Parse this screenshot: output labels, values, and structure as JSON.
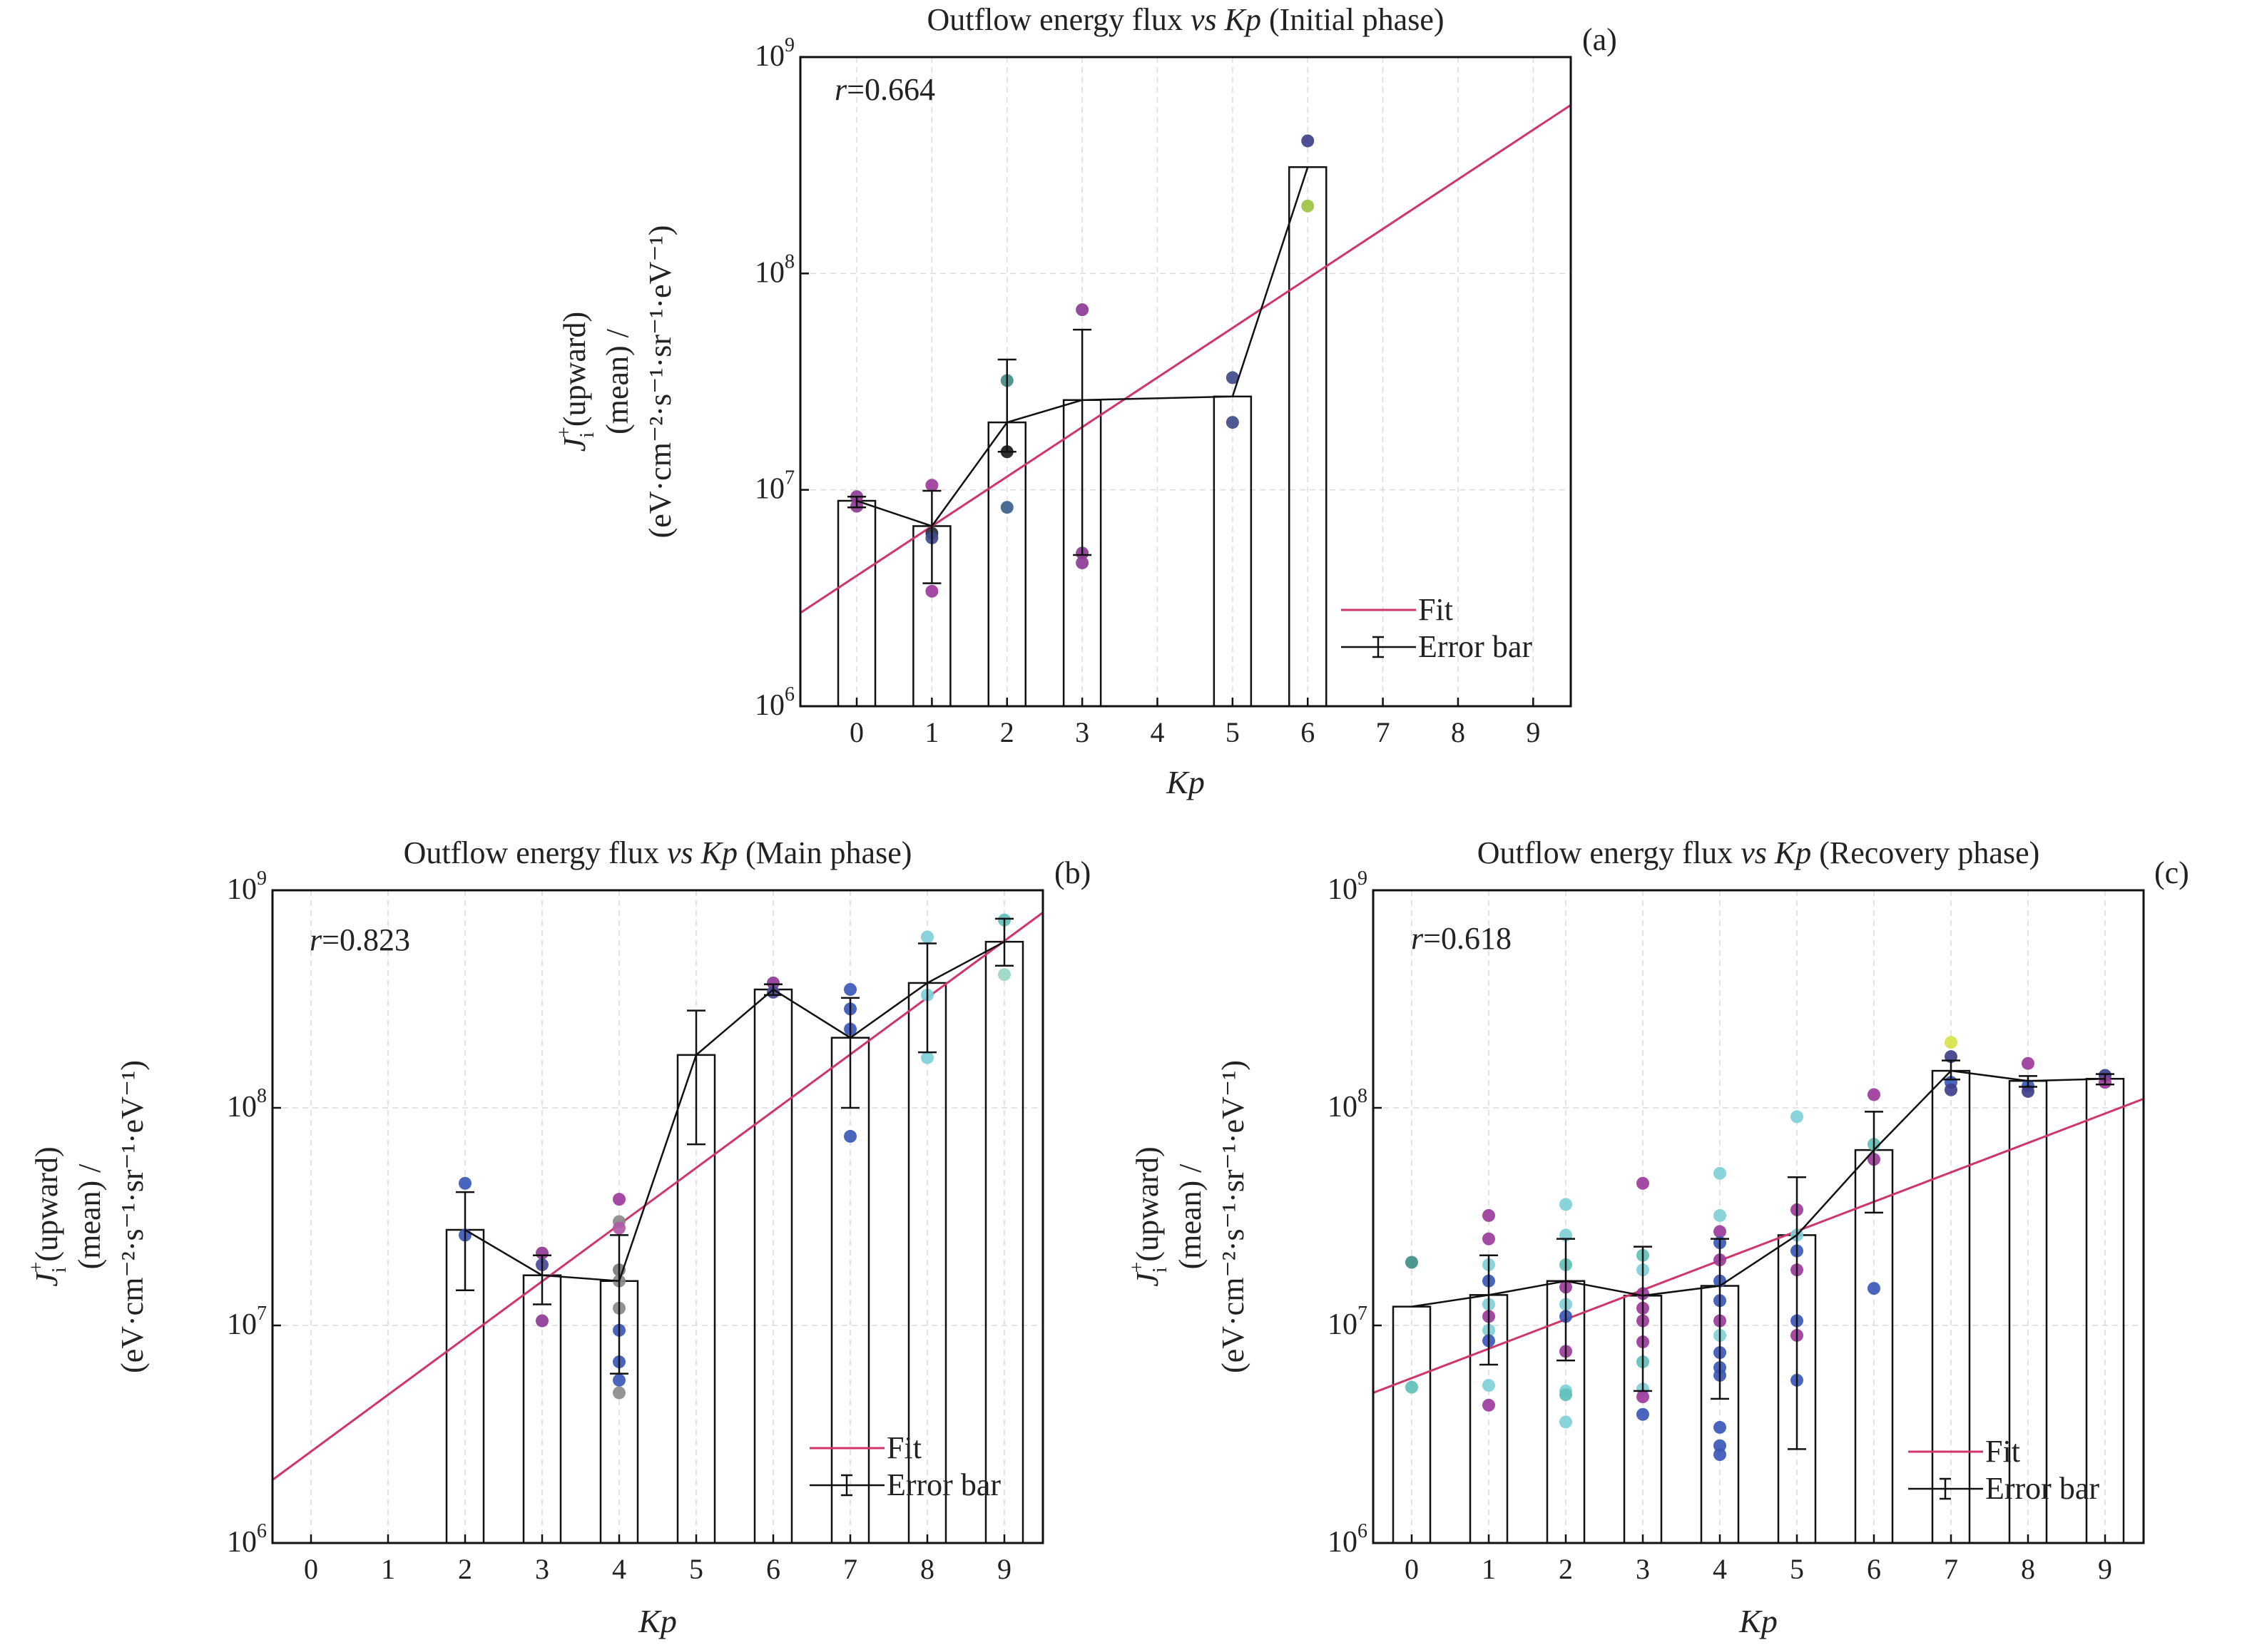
{
  "chart_data": [
    {
      "id": "a",
      "type": "bar",
      "title_parts": [
        "Outflow energy flux ",
        "vs Kp",
        " (Initial phase)"
      ],
      "panel_label": "(a)",
      "xlabel": "Kp",
      "ylabel_line1_sym": "J",
      "ylabel_line1_sub": "i",
      "ylabel_line1_sup": "+",
      "ylabel_line1_rest": "(upward)",
      "ylabel_line2": "(mean) /",
      "ylabel_line3": "(eV·cm⁻²·s⁻¹·sr⁻¹·eV⁻¹)",
      "yscale": "log",
      "ylim": [
        1000000,
        1000000000
      ],
      "xlim": [
        -0.75,
        9.5
      ],
      "xticks": [
        "0",
        "1",
        "2",
        "3",
        "4",
        "5",
        "6",
        "7",
        "8",
        "9"
      ],
      "yticks": [
        {
          "base": "10",
          "exp": "6"
        },
        {
          "base": "10",
          "exp": "7"
        },
        {
          "base": "10",
          "exp": "8"
        },
        {
          "base": "10",
          "exp": "9"
        }
      ],
      "r_label_sym": "r",
      "r_label_val": "=0.664",
      "bars": [
        {
          "kp": 0,
          "mean": 8900000
        },
        {
          "kp": 1,
          "mean": 6800000
        },
        {
          "kp": 2,
          "mean": 20500000
        },
        {
          "kp": 3,
          "mean": 26000000
        },
        {
          "kp": 5,
          "mean": 27000000
        },
        {
          "kp": 6,
          "mean": 310000000
        }
      ],
      "mean_line": [
        [
          0,
          8900000
        ],
        [
          1,
          6800000
        ],
        [
          2,
          20500000
        ],
        [
          3,
          26000000
        ],
        [
          5,
          27000000
        ],
        [
          6,
          310000000
        ]
      ],
      "error_bars": [
        {
          "kp": 0,
          "low": 8300000,
          "high": 9300000
        },
        {
          "kp": 1,
          "low": 3700000,
          "high": 9900000
        },
        {
          "kp": 2,
          "low": 15000000,
          "high": 40000000
        },
        {
          "kp": 3,
          "low": 5000000,
          "high": 55000000
        }
      ],
      "points": [
        {
          "kp": 0,
          "v": 9300000,
          "color": "#8e3b95"
        },
        {
          "kp": 0,
          "v": 8400000,
          "color": "#8e3b95"
        },
        {
          "kp": 1,
          "v": 10500000,
          "color": "#9c3b9c"
        },
        {
          "kp": 1,
          "v": 6300000,
          "color": "#2a2a3a"
        },
        {
          "kp": 1,
          "v": 6000000,
          "color": "#3f4a8a"
        },
        {
          "kp": 1,
          "v": 3400000,
          "color": "#9c3b9c"
        },
        {
          "kp": 2,
          "v": 32000000,
          "color": "#3f8d85"
        },
        {
          "kp": 2,
          "v": 15000000,
          "color": "#1a1a1a"
        },
        {
          "kp": 2,
          "v": 8300000,
          "color": "#3a5f8c"
        },
        {
          "kp": 3,
          "v": 68000000,
          "color": "#8e3b95"
        },
        {
          "kp": 3,
          "v": 5100000,
          "color": "#8e3b95"
        },
        {
          "kp": 3,
          "v": 4600000,
          "color": "#8e3b95"
        },
        {
          "kp": 5,
          "v": 33000000,
          "color": "#3f4a8a"
        },
        {
          "kp": 5,
          "v": 20500000,
          "color": "#3f4a8a"
        },
        {
          "kp": 6,
          "v": 410000000,
          "color": "#3f3f8a"
        },
        {
          "kp": 6,
          "v": 205000000,
          "color": "#9bc442"
        }
      ],
      "fit": {
        "x0": -0.75,
        "y0": 2700000,
        "x1": 9.5,
        "y1": 600000000,
        "color": "#d0356a"
      },
      "legend": {
        "fit": "Fit",
        "error": "Error bar",
        "position": "bottom-right"
      }
    },
    {
      "id": "b",
      "type": "bar",
      "title_parts": [
        "Outflow energy flux ",
        "vs Kp",
        " (Main phase)"
      ],
      "panel_label": "(b)",
      "xlabel": "Kp",
      "ylabel_line1_sym": "J",
      "ylabel_line1_sub": "i",
      "ylabel_line1_sup": "+",
      "ylabel_line1_rest": "(upward)",
      "ylabel_line2": "(mean) /",
      "ylabel_line3": "(eV·cm⁻²·s⁻¹·sr⁻¹·eV⁻¹)",
      "yscale": "log",
      "ylim": [
        1000000,
        1000000000
      ],
      "xlim": [
        -0.5,
        9.5
      ],
      "xticks": [
        "0",
        "1",
        "2",
        "3",
        "4",
        "5",
        "6",
        "7",
        "8",
        "9"
      ],
      "yticks": [
        {
          "base": "10",
          "exp": "6"
        },
        {
          "base": "10",
          "exp": "7"
        },
        {
          "base": "10",
          "exp": "8"
        },
        {
          "base": "10",
          "exp": "9"
        }
      ],
      "r_label_sym": "r",
      "r_label_val": "=0.823",
      "bars": [
        {
          "kp": 2,
          "mean": 27500000
        },
        {
          "kp": 3,
          "mean": 17000000
        },
        {
          "kp": 4,
          "mean": 16000000
        },
        {
          "kp": 5,
          "mean": 175000000
        },
        {
          "kp": 6,
          "mean": 350000000
        },
        {
          "kp": 7,
          "mean": 210000000
        },
        {
          "kp": 8,
          "mean": 375000000
        },
        {
          "kp": 9,
          "mean": 580000000
        }
      ],
      "mean_line": [
        [
          2,
          27500000
        ],
        [
          3,
          17000000
        ],
        [
          4,
          16000000
        ],
        [
          5,
          175000000
        ],
        [
          6,
          350000000
        ],
        [
          7,
          210000000
        ],
        [
          8,
          375000000
        ],
        [
          9,
          580000000
        ]
      ],
      "error_bars": [
        {
          "kp": 2,
          "low": 14500000,
          "high": 41000000
        },
        {
          "kp": 3,
          "low": 12500000,
          "high": 21000000
        },
        {
          "kp": 4,
          "low": 6000000,
          "high": 26000000
        },
        {
          "kp": 5,
          "low": 68000000,
          "high": 280000000
        },
        {
          "kp": 6,
          "low": 330000000,
          "high": 370000000
        },
        {
          "kp": 7,
          "low": 100000000,
          "high": 320000000
        },
        {
          "kp": 8,
          "low": 180000000,
          "high": 570000000
        },
        {
          "kp": 9,
          "low": 450000000,
          "high": 740000000
        }
      ],
      "points": [
        {
          "kp": 2,
          "v": 45000000,
          "color": "#3a58b8"
        },
        {
          "kp": 2,
          "v": 26000000,
          "color": "#3a58b8"
        },
        {
          "kp": 3,
          "v": 21500000,
          "color": "#8e3b95"
        },
        {
          "kp": 3,
          "v": 19000000,
          "color": "#4a4a9a"
        },
        {
          "kp": 3,
          "v": 10500000,
          "color": "#8e3b95"
        },
        {
          "kp": 4,
          "v": 38000000,
          "color": "#9c3b9c"
        },
        {
          "kp": 4,
          "v": 30000000,
          "color": "#8a8a8a"
        },
        {
          "kp": 4,
          "v": 28000000,
          "color": "#b25aa8"
        },
        {
          "kp": 4,
          "v": 18000000,
          "color": "#7a7a7a"
        },
        {
          "kp": 4,
          "v": 16000000,
          "color": "#8a8a8a"
        },
        {
          "kp": 4,
          "v": 12000000,
          "color": "#8a8a8a"
        },
        {
          "kp": 4,
          "v": 9500000,
          "color": "#3a58b8"
        },
        {
          "kp": 4,
          "v": 6800000,
          "color": "#3a58b8"
        },
        {
          "kp": 4,
          "v": 5600000,
          "color": "#3a58b8"
        },
        {
          "kp": 4,
          "v": 4900000,
          "color": "#8a8a8a"
        },
        {
          "kp": 6,
          "v": 375000000,
          "color": "#8e3b95"
        },
        {
          "kp": 6,
          "v": 340000000,
          "color": "#4a4a9a"
        },
        {
          "kp": 7,
          "v": 350000000,
          "color": "#3a58b8"
        },
        {
          "kp": 7,
          "v": 285000000,
          "color": "#3a58b8"
        },
        {
          "kp": 7,
          "v": 230000000,
          "color": "#3a58b8"
        },
        {
          "kp": 7,
          "v": 74000000,
          "color": "#3a58b8"
        },
        {
          "kp": 8,
          "v": 610000000,
          "color": "#7fd0d8"
        },
        {
          "kp": 8,
          "v": 330000000,
          "color": "#7fd0d8"
        },
        {
          "kp": 8,
          "v": 170000000,
          "color": "#7fd0d8"
        },
        {
          "kp": 9,
          "v": 730000000,
          "color": "#5fc0b8"
        },
        {
          "kp": 9,
          "v": 410000000,
          "color": "#9ad8c8"
        }
      ],
      "fit": {
        "x0": -0.5,
        "y0": 1950000,
        "x1": 9.5,
        "y1": 790000000,
        "color": "#d0356a"
      },
      "legend": {
        "fit": "Fit",
        "error": "Error bar",
        "position": "bottom-right"
      }
    },
    {
      "id": "c",
      "type": "bar",
      "title_parts": [
        "Outflow energy flux ",
        "vs Kp",
        " (Recovery phase)"
      ],
      "panel_label": "(c)",
      "xlabel": "Kp",
      "ylabel_line1_sym": "J",
      "ylabel_line1_sub": "i",
      "ylabel_line1_sup": "+",
      "ylabel_line1_rest": "(upward)",
      "ylabel_line2": "(mean) /",
      "ylabel_line3": "(eV·cm⁻²·s⁻¹·sr⁻¹·eV⁻¹)",
      "yscale": "log",
      "ylim": [
        1000000,
        1000000000
      ],
      "xlim": [
        -0.5,
        9.5
      ],
      "xticks": [
        "0",
        "1",
        "2",
        "3",
        "4",
        "5",
        "6",
        "7",
        "8",
        "9"
      ],
      "yticks": [
        {
          "base": "10",
          "exp": "6"
        },
        {
          "base": "10",
          "exp": "7"
        },
        {
          "base": "10",
          "exp": "8"
        },
        {
          "base": "10",
          "exp": "9"
        }
      ],
      "r_label_sym": "r",
      "r_label_val": "=0.618",
      "bars": [
        {
          "kp": 0,
          "mean": 12200000
        },
        {
          "kp": 1,
          "mean": 13800000
        },
        {
          "kp": 2,
          "mean": 16000000
        },
        {
          "kp": 3,
          "mean": 13700000
        },
        {
          "kp": 4,
          "mean": 15200000
        },
        {
          "kp": 5,
          "mean": 26000000
        },
        {
          "kp": 6,
          "mean": 64000000
        },
        {
          "kp": 7,
          "mean": 148000000
        },
        {
          "kp": 8,
          "mean": 133000000
        },
        {
          "kp": 9,
          "mean": 136000000
        }
      ],
      "mean_line": [
        [
          0,
          12200000
        ],
        [
          1,
          13800000
        ],
        [
          2,
          16000000
        ],
        [
          3,
          13700000
        ],
        [
          4,
          15200000
        ],
        [
          5,
          26000000
        ],
        [
          6,
          64000000
        ],
        [
          7,
          148000000
        ],
        [
          8,
          133000000
        ],
        [
          9,
          136000000
        ]
      ],
      "error_bars": [
        {
          "kp": 1,
          "low": 6600000,
          "high": 21000000
        },
        {
          "kp": 2,
          "low": 6900000,
          "high": 25000000
        },
        {
          "kp": 3,
          "low": 5000000,
          "high": 23000000
        },
        {
          "kp": 4,
          "low": 4600000,
          "high": 25000000
        },
        {
          "kp": 5,
          "low": 2700000,
          "high": 48000000
        },
        {
          "kp": 6,
          "low": 33000000,
          "high": 96000000
        },
        {
          "kp": 7,
          "low": 135000000,
          "high": 165000000
        },
        {
          "kp": 8,
          "low": 125000000,
          "high": 140000000
        },
        {
          "kp": 9,
          "low": 128000000,
          "high": 143000000
        }
      ],
      "points": [
        {
          "kp": 0,
          "v": 19500000,
          "color": "#3f8d85"
        },
        {
          "kp": 0,
          "v": 5200000,
          "color": "#5fc0b8"
        },
        {
          "kp": 1,
          "v": 32000000,
          "color": "#9c3b9c"
        },
        {
          "kp": 1,
          "v": 25000000,
          "color": "#9c3b9c"
        },
        {
          "kp": 1,
          "v": 19000000,
          "color": "#7fd0d8"
        },
        {
          "kp": 1,
          "v": 16000000,
          "color": "#3a58b8"
        },
        {
          "kp": 1,
          "v": 12500000,
          "color": "#7fd0d8"
        },
        {
          "kp": 1,
          "v": 11000000,
          "color": "#9c3b9c"
        },
        {
          "kp": 1,
          "v": 9500000,
          "color": "#7fd0d8"
        },
        {
          "kp": 1,
          "v": 8500000,
          "color": "#3a58b8"
        },
        {
          "kp": 1,
          "v": 5300000,
          "color": "#7fd0d8"
        },
        {
          "kp": 1,
          "v": 4300000,
          "color": "#9c3b9c"
        },
        {
          "kp": 2,
          "v": 36000000,
          "color": "#7fd0d8"
        },
        {
          "kp": 2,
          "v": 26000000,
          "color": "#7fd0d8"
        },
        {
          "kp": 2,
          "v": 19000000,
          "color": "#5fc0b8"
        },
        {
          "kp": 2,
          "v": 15000000,
          "color": "#9c3b9c"
        },
        {
          "kp": 2,
          "v": 12500000,
          "color": "#7fd0d8"
        },
        {
          "kp": 2,
          "v": 11000000,
          "color": "#3a58b8"
        },
        {
          "kp": 2,
          "v": 7600000,
          "color": "#9c3b9c"
        },
        {
          "kp": 2,
          "v": 5000000,
          "color": "#7fd0d8"
        },
        {
          "kp": 2,
          "v": 4800000,
          "color": "#5fc0b8"
        },
        {
          "kp": 2,
          "v": 3600000,
          "color": "#7fd0d8"
        },
        {
          "kp": 3,
          "v": 45000000,
          "color": "#9c3b9c"
        },
        {
          "kp": 3,
          "v": 21000000,
          "color": "#5fc0b8"
        },
        {
          "kp": 3,
          "v": 18000000,
          "color": "#7fd0d8"
        },
        {
          "kp": 3,
          "v": 14000000,
          "color": "#9c3b9c"
        },
        {
          "kp": 3,
          "v": 12000000,
          "color": "#9c3b9c"
        },
        {
          "kp": 3,
          "v": 10500000,
          "color": "#9c3b9c"
        },
        {
          "kp": 3,
          "v": 8400000,
          "color": "#9c3b9c"
        },
        {
          "kp": 3,
          "v": 6800000,
          "color": "#5fc0b8"
        },
        {
          "kp": 3,
          "v": 5100000,
          "color": "#7fd0d8"
        },
        {
          "kp": 3,
          "v": 4700000,
          "color": "#9c3b9c"
        },
        {
          "kp": 3,
          "v": 3900000,
          "color": "#3a58b8"
        },
        {
          "kp": 4,
          "v": 50000000,
          "color": "#7fd0d8"
        },
        {
          "kp": 4,
          "v": 32000000,
          "color": "#7fd0d8"
        },
        {
          "kp": 4,
          "v": 27000000,
          "color": "#9c3b9c"
        },
        {
          "kp": 4,
          "v": 24000000,
          "color": "#3a58b8"
        },
        {
          "kp": 4,
          "v": 20000000,
          "color": "#9c3b9c"
        },
        {
          "kp": 4,
          "v": 16000000,
          "color": "#3a58b8"
        },
        {
          "kp": 4,
          "v": 13000000,
          "color": "#3a58b8"
        },
        {
          "kp": 4,
          "v": 10500000,
          "color": "#9c3b9c"
        },
        {
          "kp": 4,
          "v": 9000000,
          "color": "#7fd0d8"
        },
        {
          "kp": 4,
          "v": 7500000,
          "color": "#3a58b8"
        },
        {
          "kp": 4,
          "v": 6400000,
          "color": "#3a58b8"
        },
        {
          "kp": 4,
          "v": 5900000,
          "color": "#3a58b8"
        },
        {
          "kp": 4,
          "v": 3400000,
          "color": "#3a58b8"
        },
        {
          "kp": 4,
          "v": 2800000,
          "color": "#3a58b8"
        },
        {
          "kp": 4,
          "v": 2550000,
          "color": "#3a58b8"
        },
        {
          "kp": 5,
          "v": 91000000,
          "color": "#7fd0d8"
        },
        {
          "kp": 5,
          "v": 34000000,
          "color": "#9c3b9c"
        },
        {
          "kp": 5,
          "v": 26000000,
          "color": "#7fd0d8"
        },
        {
          "kp": 5,
          "v": 22000000,
          "color": "#3a58b8"
        },
        {
          "kp": 5,
          "v": 18000000,
          "color": "#9c3b9c"
        },
        {
          "kp": 5,
          "v": 10500000,
          "color": "#3a58b8"
        },
        {
          "kp": 5,
          "v": 9000000,
          "color": "#9c3b9c"
        },
        {
          "kp": 5,
          "v": 5600000,
          "color": "#3a58b8"
        },
        {
          "kp": 6,
          "v": 115000000,
          "color": "#9c3b9c"
        },
        {
          "kp": 6,
          "v": 68000000,
          "color": "#5fc0b8"
        },
        {
          "kp": 6,
          "v": 58000000,
          "color": "#9c3b9c"
        },
        {
          "kp": 6,
          "v": 14800000,
          "color": "#3a58b8"
        },
        {
          "kp": 7,
          "v": 200000000,
          "color": "#d7e34a"
        },
        {
          "kp": 7,
          "v": 172000000,
          "color": "#3f3f8a"
        },
        {
          "kp": 7,
          "v": 131000000,
          "color": "#3a58b8"
        },
        {
          "kp": 7,
          "v": 121000000,
          "color": "#3f3f8a"
        },
        {
          "kp": 8,
          "v": 160000000,
          "color": "#9c3b9c"
        },
        {
          "kp": 8,
          "v": 126000000,
          "color": "#3a58b8"
        },
        {
          "kp": 8,
          "v": 119000000,
          "color": "#3f3f8a"
        },
        {
          "kp": 9,
          "v": 141000000,
          "color": "#3f3f8a"
        },
        {
          "kp": 9,
          "v": 131000000,
          "color": "#9c3b9c"
        }
      ],
      "fit": {
        "x0": -0.5,
        "y0": 4900000,
        "x1": 9.5,
        "y1": 110000000,
        "color": "#d0356a"
      },
      "legend": {
        "fit": "Fit",
        "error": "Error bar",
        "position": "bottom-right"
      }
    }
  ]
}
